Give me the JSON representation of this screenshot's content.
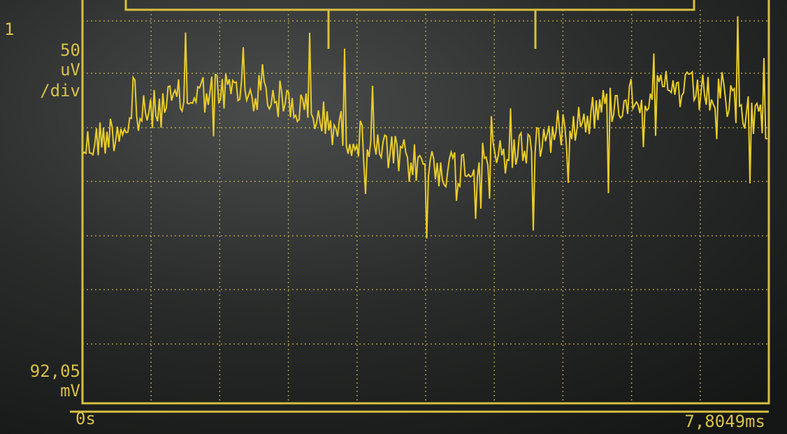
{
  "screen": {
    "channel": "1",
    "scale_value": "50",
    "scale_unit": "uV",
    "scale_per": "/div",
    "offset_value": "92,05",
    "offset_unit": "mV",
    "time_start": "0s",
    "time_end": "7,8049ms"
  }
}
